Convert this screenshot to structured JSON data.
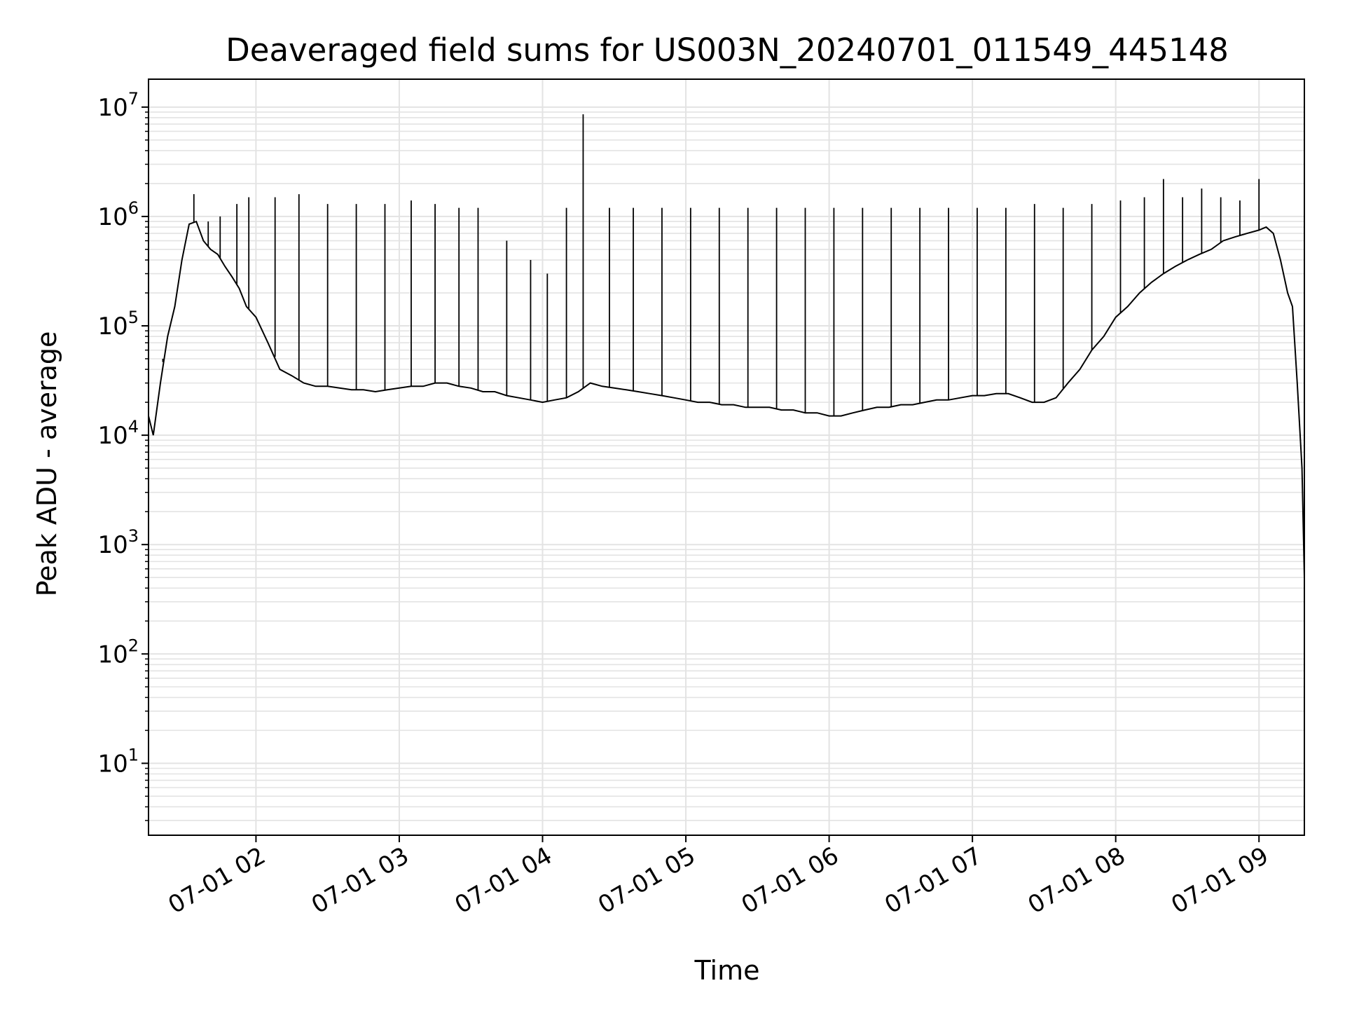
{
  "chart_data": {
    "type": "line",
    "title": "Deaveraged field sums for US003N_20240701_011549_445148",
    "xlabel": "Time",
    "ylabel": "Peak ADU - average",
    "yscale": "log",
    "ylim": [
      2.2,
      18000000
    ],
    "xlim": [
      "07-01 01:15",
      "07-01 09:19"
    ],
    "grid": true,
    "line_color": "#000000",
    "grid_color": "#e3e3e3",
    "x_ticks": [
      "07-01 02",
      "07-01 03",
      "07-01 04",
      "07-01 05",
      "07-01 06",
      "07-01 07",
      "07-01 08",
      "07-01 09"
    ],
    "y_ticks": [
      {
        "base": "10",
        "exp": "1",
        "value": 10
      },
      {
        "base": "10",
        "exp": "2",
        "value": 100
      },
      {
        "base": "10",
        "exp": "3",
        "value": 1000
      },
      {
        "base": "10",
        "exp": "4",
        "value": 10000
      },
      {
        "base": "10",
        "exp": "5",
        "value": 100000
      },
      {
        "base": "10",
        "exp": "6",
        "value": 1000000
      },
      {
        "base": "10",
        "exp": "7",
        "value": 10000000
      }
    ],
    "series": [
      {
        "x": [
          "07-01 01:15",
          "07-01 01:17",
          "07-01 01:20",
          "07-01 01:23",
          "07-01 01:26",
          "07-01 01:29",
          "07-01 01:32",
          "07-01 01:35",
          "07-01 01:38",
          "07-01 01:41",
          "07-01 01:44",
          "07-01 01:47",
          "07-01 01:50",
          "07-01 01:53",
          "07-01 01:56",
          "07-01 02:00",
          "07-01 02:05",
          "07-01 02:10",
          "07-01 02:15",
          "07-01 02:20",
          "07-01 02:25",
          "07-01 02:30",
          "07-01 02:35",
          "07-01 02:40",
          "07-01 02:45",
          "07-01 02:50",
          "07-01 02:55",
          "07-01 03:00",
          "07-01 03:05",
          "07-01 03:10",
          "07-01 03:15",
          "07-01 03:20",
          "07-01 03:25",
          "07-01 03:30",
          "07-01 03:35",
          "07-01 03:40",
          "07-01 03:45",
          "07-01 03:50",
          "07-01 03:55",
          "07-01 04:00",
          "07-01 04:05",
          "07-01 04:10",
          "07-01 04:15",
          "07-01 04:20",
          "07-01 04:25",
          "07-01 04:30",
          "07-01 04:35",
          "07-01 04:40",
          "07-01 04:45",
          "07-01 04:50",
          "07-01 04:55",
          "07-01 05:00",
          "07-01 05:05",
          "07-01 05:10",
          "07-01 05:15",
          "07-01 05:20",
          "07-01 05:25",
          "07-01 05:30",
          "07-01 05:35",
          "07-01 05:40",
          "07-01 05:45",
          "07-01 05:50",
          "07-01 05:55",
          "07-01 06:00",
          "07-01 06:05",
          "07-01 06:10",
          "07-01 06:15",
          "07-01 06:20",
          "07-01 06:25",
          "07-01 06:30",
          "07-01 06:35",
          "07-01 06:40",
          "07-01 06:45",
          "07-01 06:50",
          "07-01 06:55",
          "07-01 07:00",
          "07-01 07:05",
          "07-01 07:10",
          "07-01 07:15",
          "07-01 07:20",
          "07-01 07:25",
          "07-01 07:30",
          "07-01 07:35",
          "07-01 07:40",
          "07-01 07:45",
          "07-01 07:50",
          "07-01 07:55",
          "07-01 08:00",
          "07-01 08:05",
          "07-01 08:10",
          "07-01 08:15",
          "07-01 08:20",
          "07-01 08:25",
          "07-01 08:30",
          "07-01 08:35",
          "07-01 08:40",
          "07-01 08:45",
          "07-01 08:50",
          "07-01 08:55",
          "07-01 09:00",
          "07-01 09:03",
          "07-01 09:06",
          "07-01 09:09",
          "07-01 09:12",
          "07-01 09:14",
          "07-01 09:16",
          "07-01 09:18",
          "07-01 09:19"
        ],
        "y": [
          15000,
          10000,
          30000,
          80000,
          150000,
          400000,
          850000,
          900000,
          600000,
          500000,
          450000,
          350000,
          280000,
          220000,
          150000,
          120000,
          70000,
          40000,
          35000,
          30000,
          28000,
          28000,
          27000,
          26000,
          26000,
          25000,
          26000,
          27000,
          28000,
          28000,
          30000,
          30000,
          28000,
          27000,
          25000,
          25000,
          23000,
          22000,
          21000,
          20000,
          21000,
          22000,
          25000,
          30000,
          28000,
          27000,
          26000,
          25000,
          24000,
          23000,
          22000,
          21000,
          20000,
          20000,
          19000,
          19000,
          18000,
          18000,
          18000,
          17000,
          17000,
          16000,
          16000,
          15000,
          15000,
          16000,
          17000,
          18000,
          18000,
          19000,
          19000,
          20000,
          21000,
          21000,
          22000,
          23000,
          23000,
          24000,
          24000,
          22000,
          20000,
          20000,
          22000,
          30000,
          40000,
          60000,
          80000,
          120000,
          150000,
          200000,
          250000,
          300000,
          350000,
          400000,
          450000,
          500000,
          600000,
          650000,
          700000,
          750000,
          800000,
          700000,
          400000,
          200000,
          150000,
          30000,
          5000,
          500
        ],
        "spike_x": [
          "07-01 01:21",
          "07-01 01:34",
          "07-01 01:40",
          "07-01 01:45",
          "07-01 01:52",
          "07-01 01:57",
          "07-01 02:08",
          "07-01 02:18",
          "07-01 02:30",
          "07-01 02:42",
          "07-01 02:54",
          "07-01 03:05",
          "07-01 03:15",
          "07-01 03:25",
          "07-01 03:33",
          "07-01 03:45",
          "07-01 03:55",
          "07-01 04:02",
          "07-01 04:10",
          "07-01 04:17",
          "07-01 04:28",
          "07-01 04:38",
          "07-01 04:50",
          "07-01 05:02",
          "07-01 05:14",
          "07-01 05:26",
          "07-01 05:38",
          "07-01 05:50",
          "07-01 06:02",
          "07-01 06:14",
          "07-01 06:26",
          "07-01 06:38",
          "07-01 06:50",
          "07-01 07:02",
          "07-01 07:14",
          "07-01 07:26",
          "07-01 07:38",
          "07-01 07:50",
          "07-01 08:02",
          "07-01 08:12",
          "07-01 08:20",
          "07-01 08:28",
          "07-01 08:36",
          "07-01 08:44",
          "07-01 08:52",
          "07-01 09:00"
        ],
        "spike_y": [
          50000,
          1600000,
          900000,
          1000000,
          1300000,
          1500000,
          1500000,
          1600000,
          1300000,
          1300000,
          1300000,
          1400000,
          1300000,
          1200000,
          1200000,
          600000,
          400000,
          300000,
          1200000,
          8600000,
          1200000,
          1200000,
          1200000,
          1200000,
          1200000,
          1200000,
          1200000,
          1200000,
          1200000,
          1200000,
          1200000,
          1200000,
          1200000,
          1200000,
          1200000,
          1300000,
          1200000,
          1300000,
          1400000,
          1500000,
          2200000,
          1500000,
          1800000,
          1500000,
          1400000,
          2200000
        ]
      }
    ]
  }
}
